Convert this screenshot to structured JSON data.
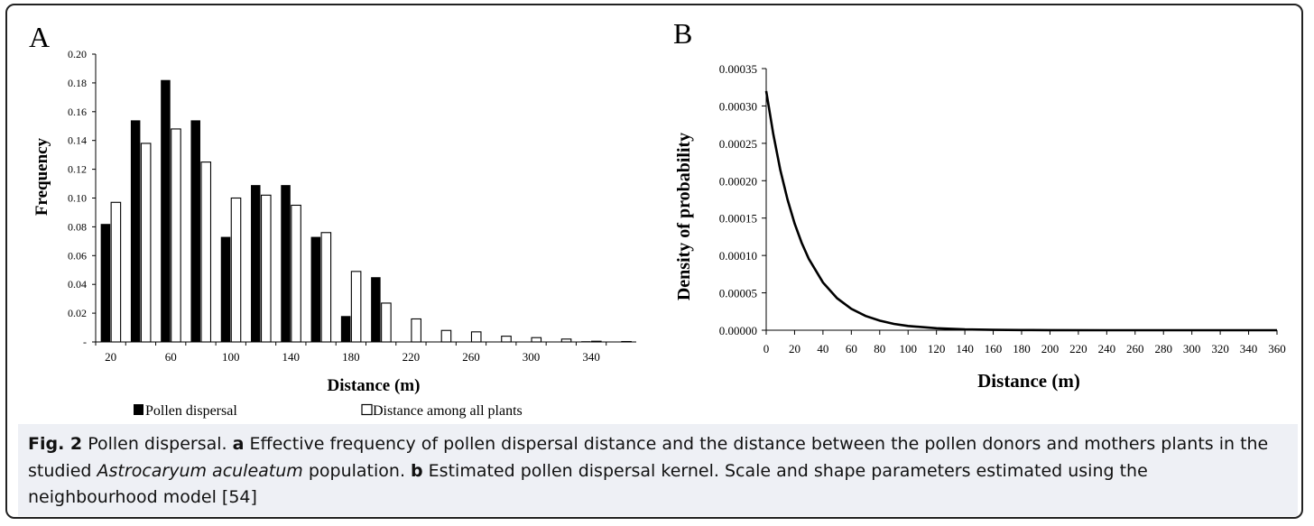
{
  "panel_a": {
    "letter": "A",
    "legend": {
      "pollen": "Pollen dispersal",
      "distance": "Distance among all plants"
    }
  },
  "panel_b": {
    "letter": "B"
  },
  "caption": {
    "fig_label": "Fig. 2",
    "title": " Pollen dispersal. ",
    "a_label": "a",
    "text1": " Effective frequency of pollen dispersal distance and the distance between the pollen donors and mothers plants in the studied ",
    "species": "Astrocaryum aculeatum",
    "text2": " population. ",
    "b_label": "b",
    "text3": " Estimated pollen dispersal kernel. Scale and shape parameters estimated using the neighbourhood model [54]"
  },
  "colors": {
    "pollen_bar": "#000000",
    "distance_bar": "#ffffff",
    "curve": "#000000",
    "caption_bg": "#eef0f5"
  },
  "chart_data": [
    {
      "type": "bar",
      "panel": "A",
      "title": "",
      "xlabel": "Distance (m)",
      "ylabel": "Frequency",
      "ylim": [
        0,
        0.2
      ],
      "yticks": [
        "-",
        "0.02",
        "0.04",
        "0.06",
        "0.08",
        "0.10",
        "0.12",
        "0.14",
        "0.16",
        "0.18",
        "0.20"
      ],
      "xtick_labels": [
        "20",
        "60",
        "100",
        "140",
        "180",
        "220",
        "260",
        "300",
        "340"
      ],
      "categories": [
        "20",
        "40",
        "60",
        "80",
        "100",
        "120",
        "140",
        "160",
        "180",
        "200",
        "220",
        "240",
        "260",
        "280",
        "300",
        "320",
        "340",
        "360"
      ],
      "series": [
        {
          "name": "Pollen dispersal",
          "values": [
            0.082,
            0.154,
            0.182,
            0.154,
            0.073,
            0.109,
            0.109,
            0.073,
            0.018,
            0.045,
            0,
            0,
            0,
            0,
            0,
            0,
            0.0005,
            0
          ]
        },
        {
          "name": "Distance among all plants",
          "values": [
            0.097,
            0.138,
            0.148,
            0.125,
            0.1,
            0.102,
            0.095,
            0.076,
            0.049,
            0.027,
            0.016,
            0.008,
            0.007,
            0.004,
            0.003,
            0.002,
            0.0005,
            0.0003
          ]
        }
      ],
      "legend_position": "bottom",
      "grid": false
    },
    {
      "type": "line",
      "panel": "B",
      "title": "",
      "xlabel": "Distance (m)",
      "ylabel": "Density of probability",
      "xlim": [
        0,
        360
      ],
      "ylim": [
        0,
        0.00035
      ],
      "xticks": [
        "0",
        "20",
        "40",
        "60",
        "80",
        "100",
        "120",
        "140",
        "160",
        "180",
        "200",
        "220",
        "240",
        "260",
        "280",
        "300",
        "320",
        "340",
        "360"
      ],
      "yticks": [
        "0.00000",
        "0.00005",
        "0.00010",
        "0.00015",
        "0.00020",
        "0.00025",
        "0.00030",
        "0.00035"
      ],
      "series": [
        {
          "name": "",
          "x": [
            0,
            5,
            10,
            15,
            20,
            25,
            30,
            40,
            50,
            60,
            70,
            80,
            90,
            100,
            120,
            140,
            160,
            180,
            200,
            240,
            280,
            320,
            360
          ],
          "y": [
            0.00032,
            0.000262,
            0.000214,
            0.000175,
            0.000143,
            0.000117,
            9.55e-05,
            6.39e-05,
            4.27e-05,
            2.86e-05,
            1.91e-05,
            1.28e-05,
            8.5e-06,
            5.7e-06,
            2.6e-06,
            1.1e-06,
            5e-07,
            2e-07,
            1e-07,
            0,
            0,
            0,
            0
          ]
        }
      ],
      "grid": false
    }
  ]
}
